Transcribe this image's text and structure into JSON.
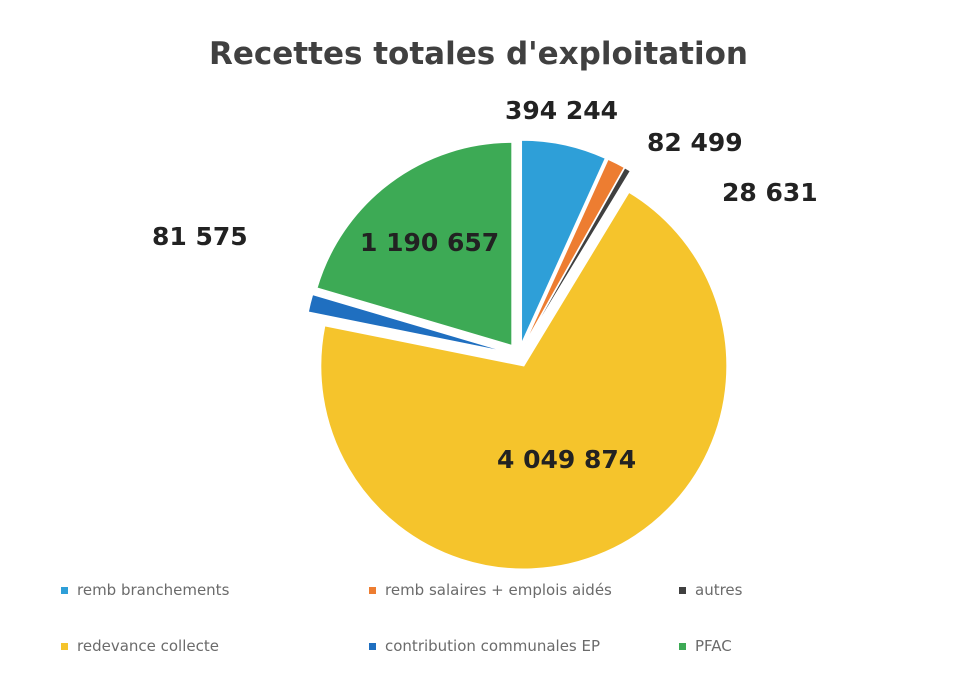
{
  "chart_data": {
    "type": "pie",
    "title": "Recettes totales d'exploitation",
    "legend_position": "bottom",
    "exploded": true,
    "slices": [
      {
        "label": "remb branchements",
        "value": 394244,
        "value_label": "394 244",
        "color": "#2e9fd8"
      },
      {
        "label": "remb salaires + emplois aidés",
        "value": 82499,
        "value_label": "82 499",
        "color": "#ed7d31"
      },
      {
        "label": "autres",
        "value": 28631,
        "value_label": "28 631",
        "color": "#404040"
      },
      {
        "label": "redevance collecte",
        "value": 4049874,
        "value_label": "4 049 874",
        "color": "#f5c42c"
      },
      {
        "label": "contribution communales EP",
        "value": 81575,
        "value_label": "81 575",
        "color": "#1f6fc0"
      },
      {
        "label": "PFAC",
        "value": 1190657,
        "value_label": "1 190 657",
        "color": "#3daa55"
      }
    ]
  }
}
